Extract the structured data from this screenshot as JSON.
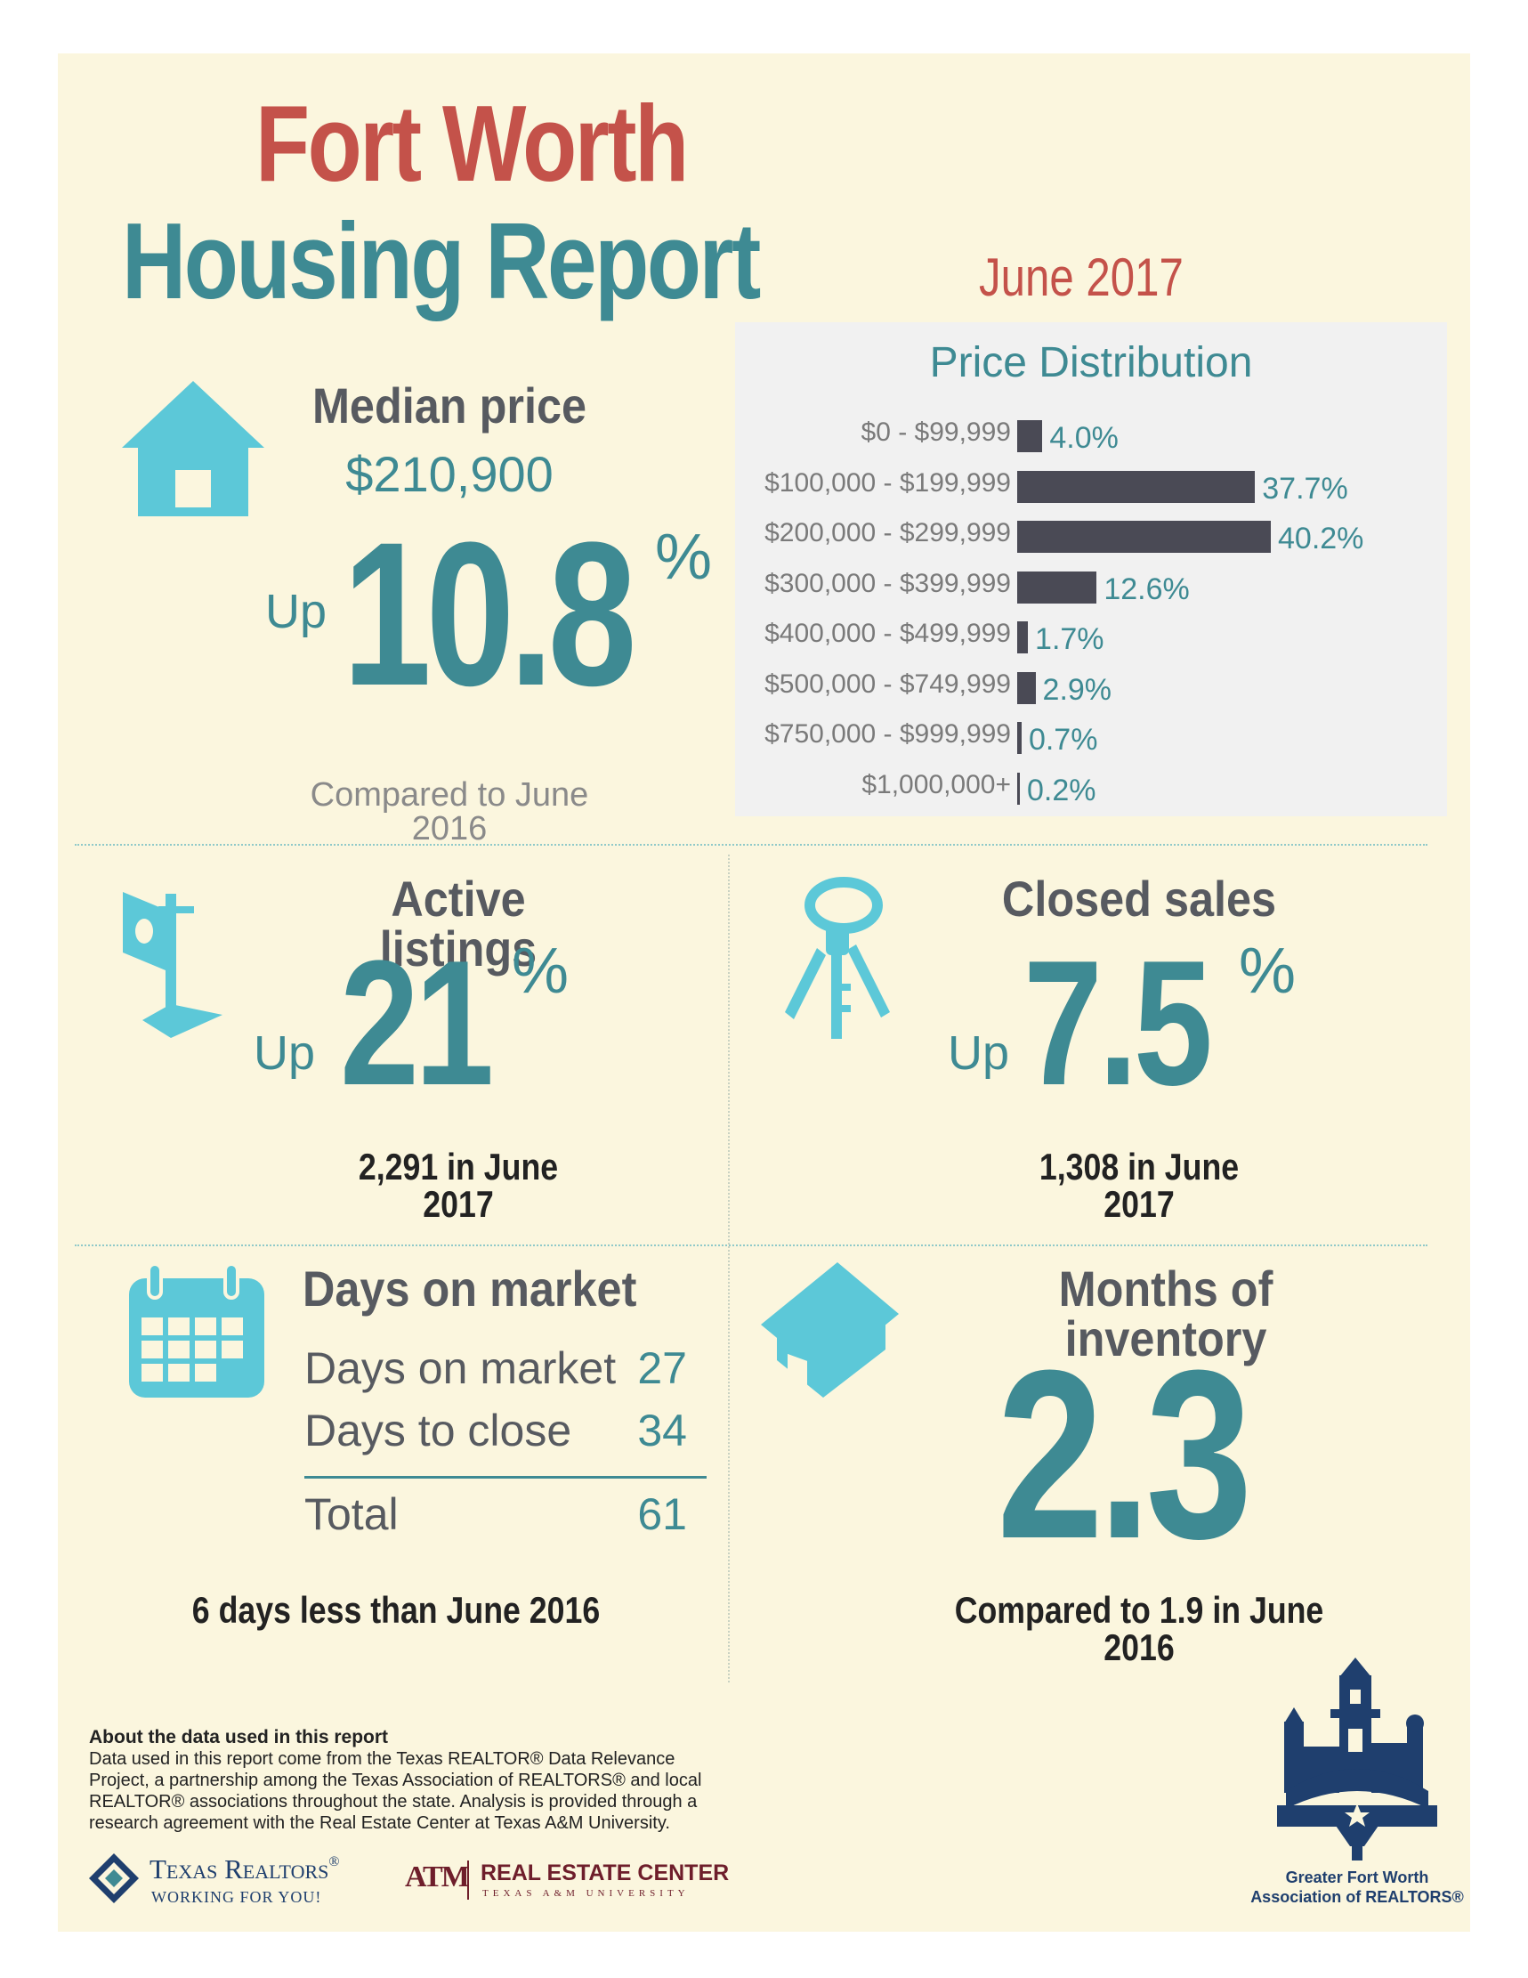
{
  "header": {
    "title_line1": "Fort Worth",
    "title_line2": "Housing Report",
    "date": "June 2017"
  },
  "median": {
    "heading": "Median price",
    "price": "$210,900",
    "up_label": "Up",
    "value": "10.8",
    "percent_sign": "%",
    "comparison": "Compared to June 2016"
  },
  "price_distribution": {
    "title": "Price Distribution"
  },
  "chart_data": {
    "type": "bar",
    "title": "Price Distribution",
    "orientation": "horizontal",
    "categories": [
      "$0 - $99,999",
      "$100,000 - $199,999",
      "$200,000 - $299,999",
      "$300,000 - $399,999",
      "$400,000 - $499,999",
      "$500,000 - $749,999",
      "$750,000 - $999,999",
      "$1,000,000+"
    ],
    "values": [
      4.0,
      37.7,
      40.2,
      12.6,
      1.7,
      2.9,
      0.7,
      0.2
    ],
    "value_labels": [
      "4.0%",
      "37.7%",
      "40.2%",
      "12.6%",
      "1.7%",
      "2.9%",
      "0.7%",
      "0.2%"
    ],
    "bar_color": "#4a4a55",
    "label_color": "#3e8a93",
    "grid": false
  },
  "active_listings": {
    "heading": "Active listings",
    "up_label": "Up",
    "value": "21",
    "percent_sign": "%",
    "detail": "2,291 in June 2017"
  },
  "closed_sales": {
    "heading": "Closed sales",
    "up_label": "Up",
    "value": "7.5",
    "percent_sign": "%",
    "detail": "1,308 in June 2017"
  },
  "days_on_market": {
    "heading": "Days on market",
    "rows": [
      {
        "label": "Days on market",
        "value": "27"
      },
      {
        "label": "Days to close",
        "value": "34"
      }
    ],
    "total_label": "Total",
    "total_value": "61",
    "comparison": "6 days less than June 2016"
  },
  "inventory": {
    "heading": "Months of inventory",
    "value": "2.3",
    "comparison": "Compared to 1.9 in June 2016"
  },
  "footer": {
    "about_title": "About the data used in this report",
    "about_text": "Data used in this report come from the Texas REALTOR® Data Relevance Project, a partnership among the Texas Association of REALTORS® and local REALTOR® associations throughout the state. Analysis is provided through a research agreement with the Real Estate Center at Texas A&M University.",
    "texas_realtors": "Texas Realtors",
    "texas_realtors_mark": "®",
    "texas_realtors_tagline": "WORKING FOR YOU!",
    "atm": "ATM",
    "rec_name": "REAL ESTATE CENTER",
    "rec_sub": "TEXAS A&M UNIVERSITY",
    "gfw_line1": "Greater Fort Worth",
    "gfw_line2": "Association of REALTORS®"
  },
  "colors": {
    "background": "#fbf6de",
    "title_red": "#c4524a",
    "teal": "#3e8a93",
    "icon_cyan": "#5cc8d8",
    "heading_slate": "#575a60",
    "navy": "#1f3f6e"
  },
  "icons": [
    "house-icon",
    "for-sale-sign-icon",
    "keys-icon",
    "calendar-icon",
    "home-icon",
    "texas-realtors-logo-icon",
    "atm-logo-icon",
    "gfw-skyline-logo-icon"
  ]
}
